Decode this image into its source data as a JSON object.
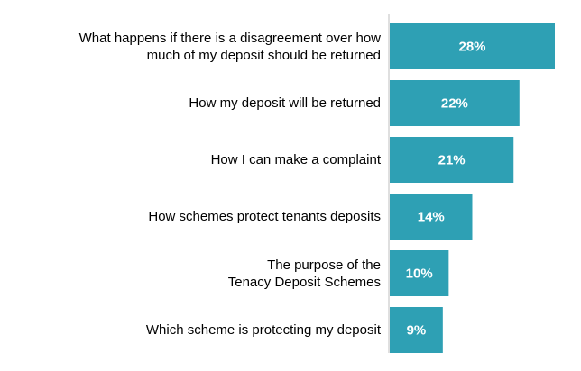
{
  "chart_data": {
    "type": "bar",
    "orientation": "horizontal",
    "categories": [
      "What happens if there is a disagreement over how much of my deposit should be returned",
      "How my deposit will be returned",
      "How I can make a complaint",
      "How schemes protect tenants deposits",
      "The purpose of the Tenacy Deposit Schemes",
      "Which scheme is protecting my deposit"
    ],
    "category_lines": [
      [
        "What happens if there is a disagreement over how",
        "much of my deposit should be returned"
      ],
      [
        "How my deposit will be returned"
      ],
      [
        "How I can make a complaint"
      ],
      [
        "How schemes protect tenants deposits"
      ],
      [
        "The purpose of the",
        "Tenacy Deposit Schemes"
      ],
      [
        "Which scheme is protecting my deposit"
      ]
    ],
    "values": [
      28,
      22,
      21,
      14,
      10,
      9
    ],
    "data_labels": [
      "28%",
      "22%",
      "21%",
      "14%",
      "10%",
      "9%"
    ],
    "unit": "%",
    "xlim": [
      0,
      28
    ],
    "bar_color": "#2ea0b4",
    "title": "",
    "xlabel": "",
    "ylabel": "",
    "grid": false,
    "legend": "none"
  }
}
